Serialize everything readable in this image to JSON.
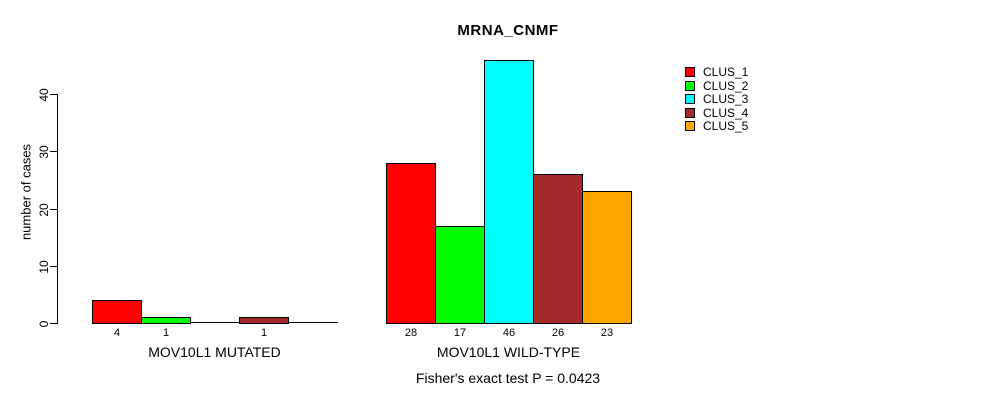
{
  "chart_data": {
    "type": "bar",
    "title": "MRNA_CNMF",
    "ylabel": "number of cases",
    "annotation": "Fisher's exact test P = 0.0423",
    "ylim": [
      0,
      46
    ],
    "yticks": [
      0,
      10,
      20,
      30,
      40
    ],
    "grid": false,
    "legend_position": "right",
    "bar_edge_color": "#000000",
    "background_color": "#ffffff",
    "series": [
      {
        "name": "CLUS_1",
        "color": "#FF0000"
      },
      {
        "name": "CLUS_2",
        "color": "#00FF00"
      },
      {
        "name": "CLUS_3",
        "color": "#00FFFF"
      },
      {
        "name": "CLUS_4",
        "color": "#A52A2A"
      },
      {
        "name": "CLUS_5",
        "color": "#FFA500"
      }
    ],
    "groups": [
      {
        "label": "MOV10L1 MUTATED",
        "values": [
          4,
          1,
          0,
          1,
          0
        ]
      },
      {
        "label": "MOV10L1 WILD-TYPE",
        "values": [
          28,
          17,
          46,
          26,
          23
        ]
      }
    ],
    "show_value_labels": true
  }
}
